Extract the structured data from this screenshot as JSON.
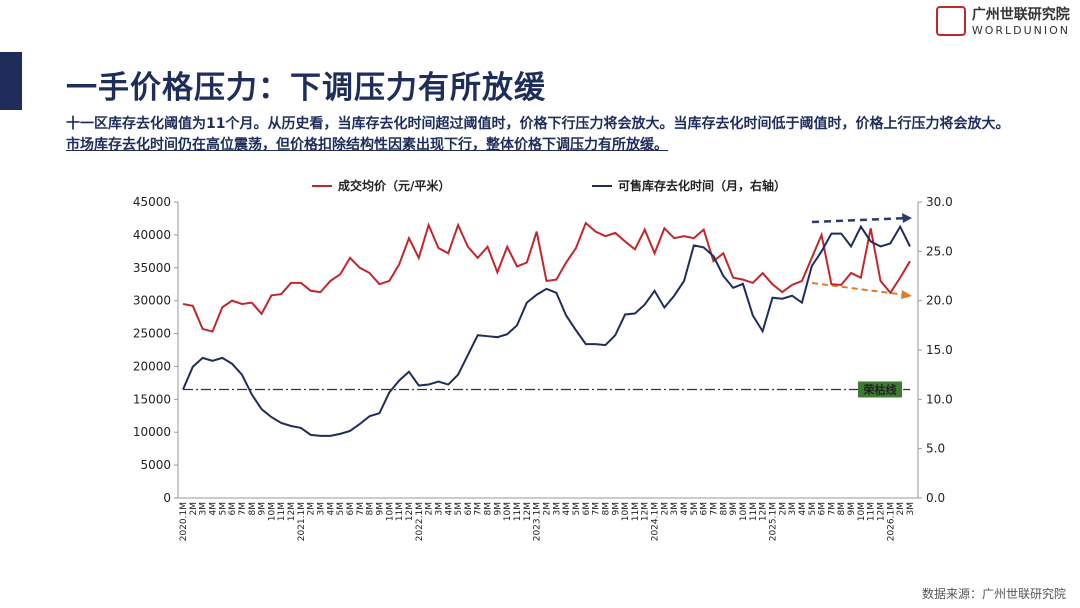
{
  "header": {
    "title": "一手价格压力：下调压力有所放缓"
  },
  "logo": {
    "name": "广州世联研究院",
    "en": "WORLDUNION"
  },
  "body": {
    "text": "十一区库存去化阈值为11个月。从历史看，当库存去化时间超过阈值时，价格下行压力将会放大。当库存去化时间低于阈值时，价格上行压力将会放大。",
    "highlight": "市场库存去化时间仍在高位震荡，但价格扣除结构性因素出现下行，整体价格下调压力有所放缓。"
  },
  "footer": {
    "source": "数据来源：广州世联研究院"
  },
  "chart_data": {
    "type": "line",
    "categories": [
      "2020.1M",
      "2M",
      "3M",
      "4M",
      "5M",
      "6M",
      "7M",
      "8M",
      "9M",
      "10M",
      "11M",
      "12M",
      "2021.1M",
      "2M",
      "3M",
      "4M",
      "5M",
      "6M",
      "7M",
      "8M",
      "9M",
      "10M",
      "11M",
      "12M",
      "2022.1M",
      "2M",
      "3M",
      "4M",
      "5M",
      "6M",
      "7M",
      "8M",
      "9M",
      "10M",
      "11M",
      "12M",
      "2023.1M",
      "2M",
      "3M",
      "4M",
      "5M",
      "6M",
      "7M",
      "8M",
      "9M",
      "10M",
      "11M",
      "12M",
      "2024.1M",
      "2M",
      "3M",
      "4M",
      "5M",
      "6M",
      "7M",
      "8M",
      "9M",
      "10M",
      "11M",
      "12M",
      "2025.1M",
      "2M",
      "3M",
      "4M",
      "5M",
      "6M",
      "7M",
      "8M",
      "9M",
      "10M",
      "11M",
      "12M",
      "2026.1M",
      "2M",
      "3M"
    ],
    "series": [
      {
        "name": "成交均价（元/平米）",
        "color": "#c0272d",
        "values": [
          29500,
          29200,
          25700,
          25300,
          29000,
          30000,
          29500,
          29700,
          28000,
          30800,
          31000,
          32700,
          32700,
          31500,
          31300,
          33000,
          34000,
          36500,
          35000,
          34200,
          32500,
          33000,
          35500,
          39500,
          36500,
          41500,
          38000,
          37200,
          41500,
          38200,
          36500,
          38200,
          34300,
          38200,
          35200,
          35800,
          40500,
          33000,
          33200,
          35800,
          38000,
          41800,
          40500,
          39800,
          40300,
          39000,
          37800,
          40800,
          37200,
          41000,
          39500,
          39800,
          39500,
          40800,
          36000,
          37200,
          33500,
          33200,
          32700,
          34200,
          32500,
          31300,
          32400,
          33000,
          36500,
          40000,
          32500,
          32400,
          34200,
          33500,
          41000,
          33000,
          31200,
          33500,
          36000
        ]
      },
      {
        "name": "可售库存去化时间（月，右轴）",
        "color": "#1f2d5a",
        "axis": "y2",
        "values": [
          11,
          13.3,
          14.2,
          13.9,
          14.2,
          13.6,
          12.5,
          10.5,
          9,
          8.2,
          7.6,
          7.3,
          7.1,
          6.4,
          6.3,
          6.3,
          6.5,
          6.8,
          7.5,
          8.3,
          8.6,
          10.7,
          11.9,
          12.8,
          11.4,
          11.5,
          11.8,
          11.5,
          12.5,
          14.5,
          16.5,
          16.4,
          16.3,
          16.6,
          17.5,
          19.8,
          20.6,
          21.2,
          20.8,
          18.5,
          17,
          15.6,
          15.6,
          15.5,
          16.5,
          18.6,
          18.7,
          19.6,
          21,
          19.3,
          20.5,
          22,
          25.6,
          25.4,
          24.5,
          22.5,
          21.3,
          21.7,
          18.5,
          16.9,
          20.3,
          20.2,
          20.5,
          19.8,
          23.5,
          25,
          26.8,
          26.8,
          25.5,
          27.5,
          26,
          25.5,
          25.8,
          27.5,
          25.5
        ]
      }
    ],
    "ylim": [
      0,
      45000
    ],
    "yticks": [
      0,
      5000,
      10000,
      15000,
      20000,
      25000,
      30000,
      35000,
      40000,
      45000
    ],
    "y2lim": [
      0,
      30
    ],
    "y2ticks": [
      {
        "value": 0,
        "label": "0.0"
      },
      {
        "value": 5,
        "label": "5.0"
      },
      {
        "value": 10,
        "label": "10.0"
      },
      {
        "value": 15,
        "label": "15.0"
      },
      {
        "value": 20,
        "label": "20.0"
      },
      {
        "value": 25,
        "label": "25.0"
      },
      {
        "value": 30,
        "label": "30.0"
      }
    ],
    "reference_line": {
      "label": "荣枯线",
      "value": 11,
      "axis": "y2"
    },
    "legend": "top",
    "grid": false
  }
}
